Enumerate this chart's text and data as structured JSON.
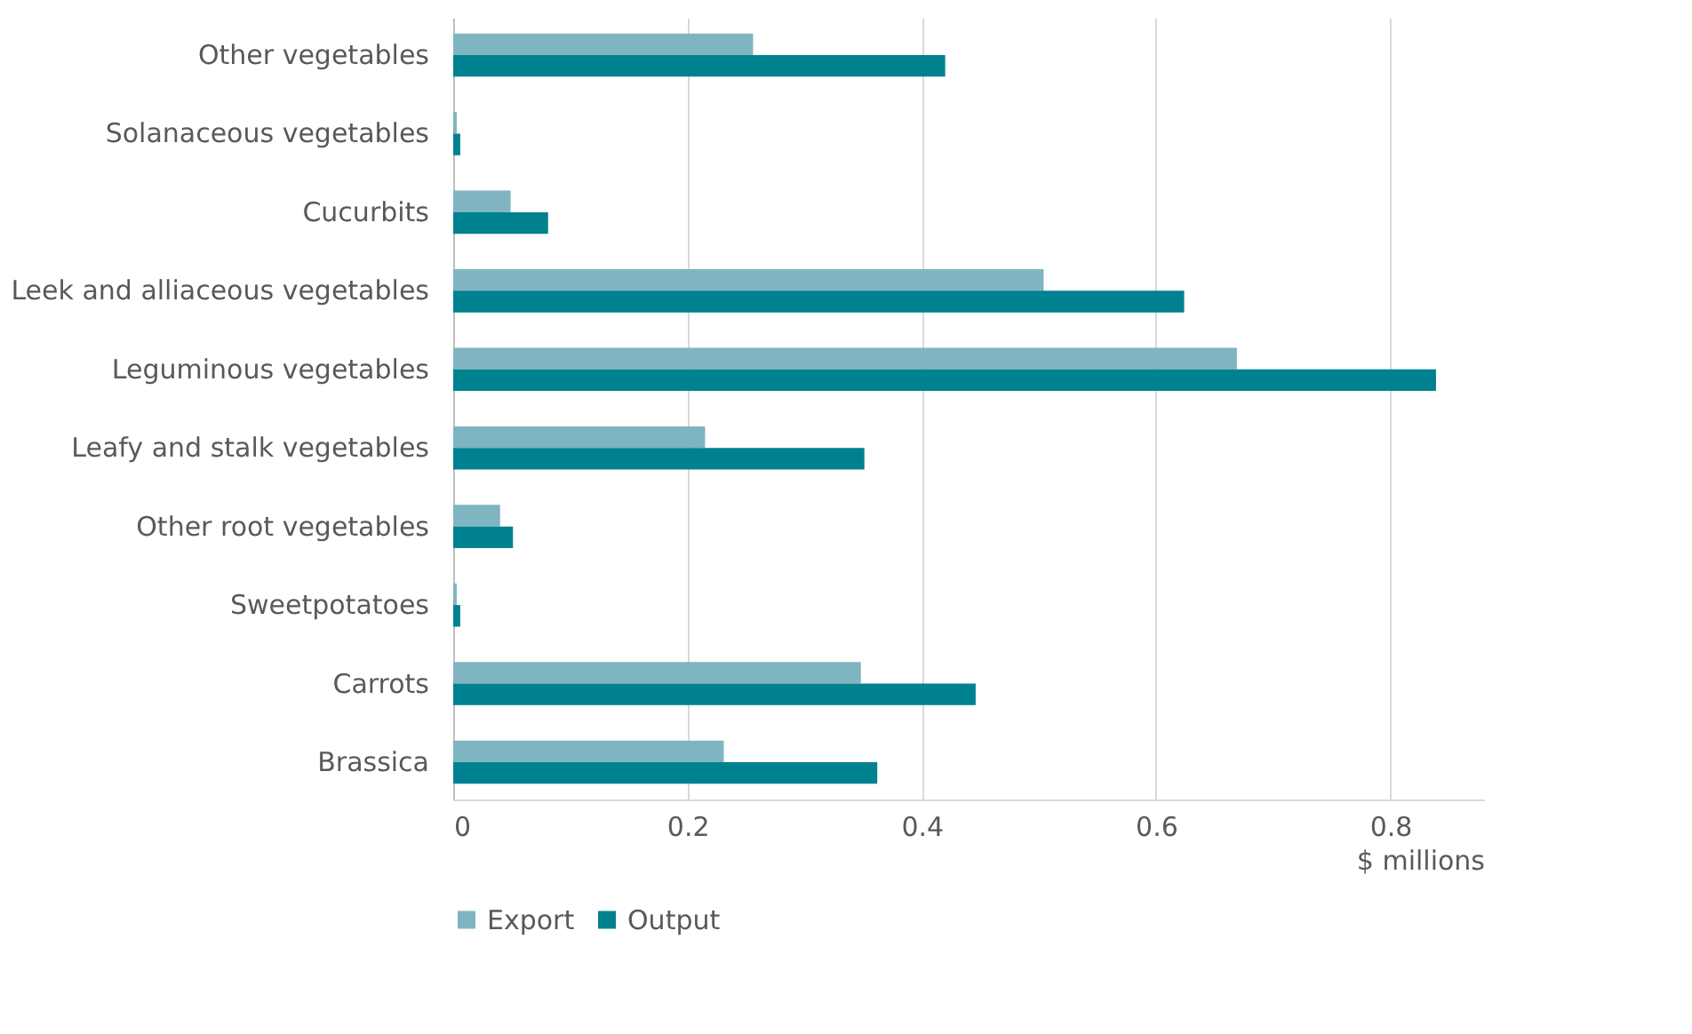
{
  "chart_data": {
    "type": "bar",
    "orientation": "horizontal",
    "xlabel": "$ millions",
    "categories": [
      "Other vegetables",
      "Solanaceous vegetables",
      "Cucurbits",
      "Leek and alliaceous vegetables",
      "Leguminous vegetables",
      "Leafy and stalk vegetables",
      "Other root vegetables",
      "Sweetpotatoes",
      "Carrots",
      "Brassica"
    ],
    "series": [
      {
        "name": "Export",
        "color": "#7fb5c0",
        "values": [
          0.256,
          0.003,
          0.049,
          0.504,
          0.669,
          0.215,
          0.04,
          0.003,
          0.348,
          0.231
        ]
      },
      {
        "name": "Output",
        "color": "#00818f",
        "values": [
          0.42,
          0.006,
          0.081,
          0.624,
          0.839,
          0.351,
          0.051,
          0.006,
          0.446,
          0.362
        ]
      }
    ],
    "xlim": [
      0,
      0.88
    ],
    "xticks": [
      0,
      0.2,
      0.4,
      0.6,
      0.8
    ],
    "grid": "x",
    "legend": "bottom"
  }
}
